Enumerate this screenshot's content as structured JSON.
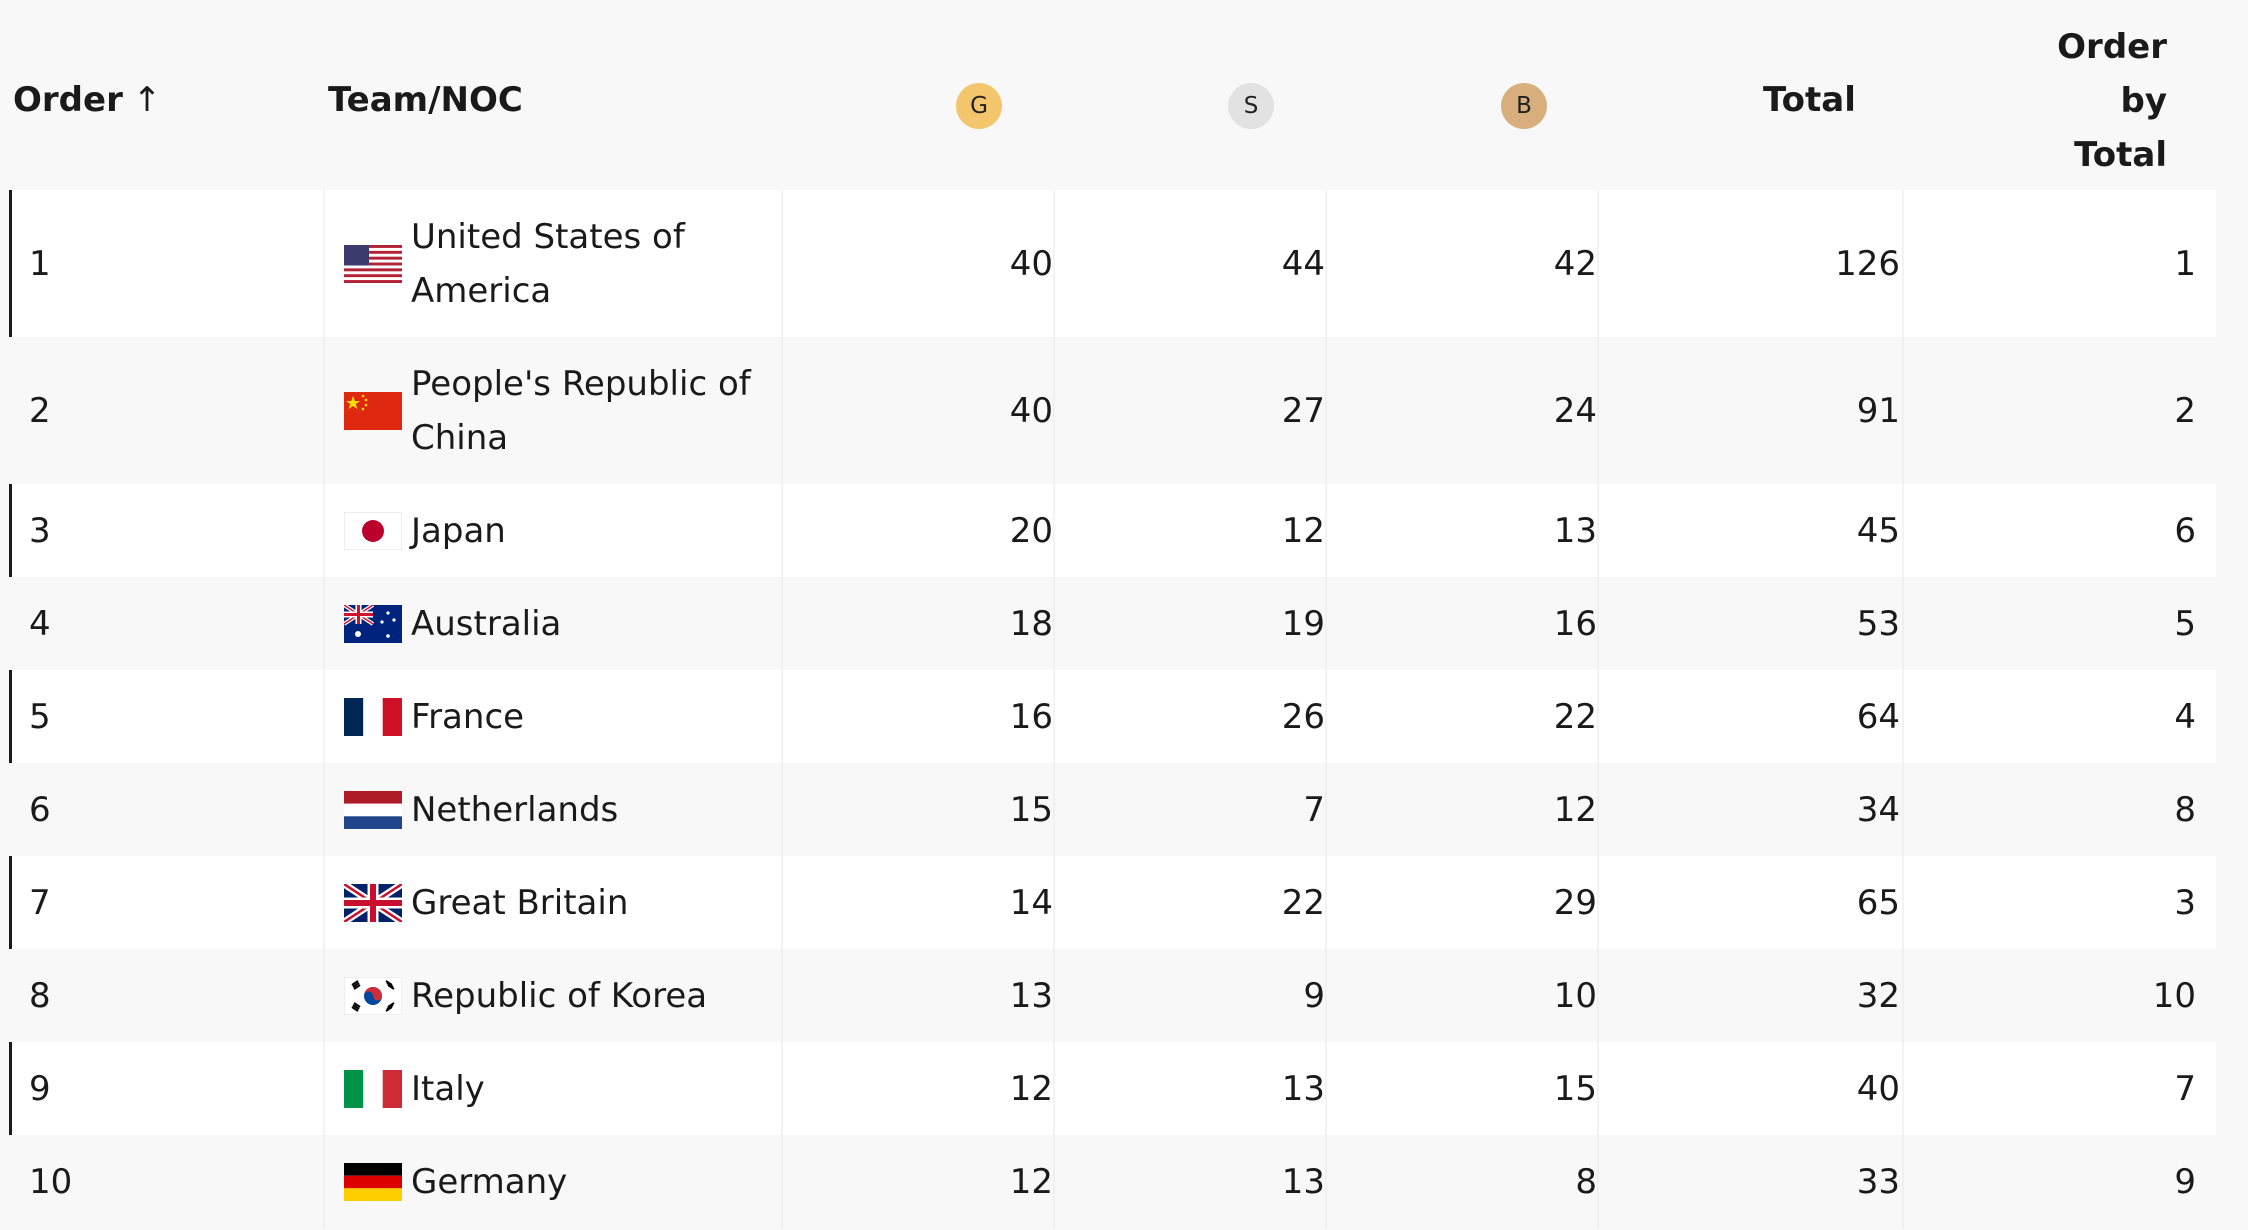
{
  "header": {
    "order_label": "Order",
    "sort_arrow": "↑",
    "team_label": "Team/NOC",
    "gold_label": "G",
    "silver_label": "S",
    "bronze_label": "B",
    "total_label": "Total",
    "order_by_total_line1": "Order",
    "order_by_total_line2": "by",
    "order_by_total_line3": "Total"
  },
  "colors": {
    "gold": "#f3c66e",
    "silver": "#e2e2e2",
    "bronze": "#d7ae7c"
  },
  "rows": [
    {
      "order": "1",
      "team_line1": "United States of",
      "team_line2": "America",
      "flag": "usa-flag-icon",
      "gold": "40",
      "silver": "44",
      "bronze": "42",
      "total": "126",
      "order_by_total": "1"
    },
    {
      "order": "2",
      "team_line1": "People's Republic of",
      "team_line2": "China",
      "flag": "china-flag-icon",
      "gold": "40",
      "silver": "27",
      "bronze": "24",
      "total": "91",
      "order_by_total": "2"
    },
    {
      "order": "3",
      "team_line1": "Japan",
      "team_line2": "",
      "flag": "japan-flag-icon",
      "gold": "20",
      "silver": "12",
      "bronze": "13",
      "total": "45",
      "order_by_total": "6"
    },
    {
      "order": "4",
      "team_line1": "Australia",
      "team_line2": "",
      "flag": "australia-flag-icon",
      "gold": "18",
      "silver": "19",
      "bronze": "16",
      "total": "53",
      "order_by_total": "5"
    },
    {
      "order": "5",
      "team_line1": "France",
      "team_line2": "",
      "flag": "france-flag-icon",
      "gold": "16",
      "silver": "26",
      "bronze": "22",
      "total": "64",
      "order_by_total": "4"
    },
    {
      "order": "6",
      "team_line1": "Netherlands",
      "team_line2": "",
      "flag": "netherlands-flag-icon",
      "gold": "15",
      "silver": "7",
      "bronze": "12",
      "total": "34",
      "order_by_total": "8"
    },
    {
      "order": "7",
      "team_line1": "Great Britain",
      "team_line2": "",
      "flag": "great-britain-flag-icon",
      "gold": "14",
      "silver": "22",
      "bronze": "29",
      "total": "65",
      "order_by_total": "3"
    },
    {
      "order": "8",
      "team_line1": "Republic of Korea",
      "team_line2": "",
      "flag": "korea-flag-icon",
      "gold": "13",
      "silver": "9",
      "bronze": "10",
      "total": "32",
      "order_by_total": "10"
    },
    {
      "order": "9",
      "team_line1": "Italy",
      "team_line2": "",
      "flag": "italy-flag-icon",
      "gold": "12",
      "silver": "13",
      "bronze": "15",
      "total": "40",
      "order_by_total": "7"
    },
    {
      "order": "10",
      "team_line1": "Germany",
      "team_line2": "",
      "flag": "germany-flag-icon",
      "gold": "12",
      "silver": "13",
      "bronze": "8",
      "total": "33",
      "order_by_total": "9"
    }
  ]
}
